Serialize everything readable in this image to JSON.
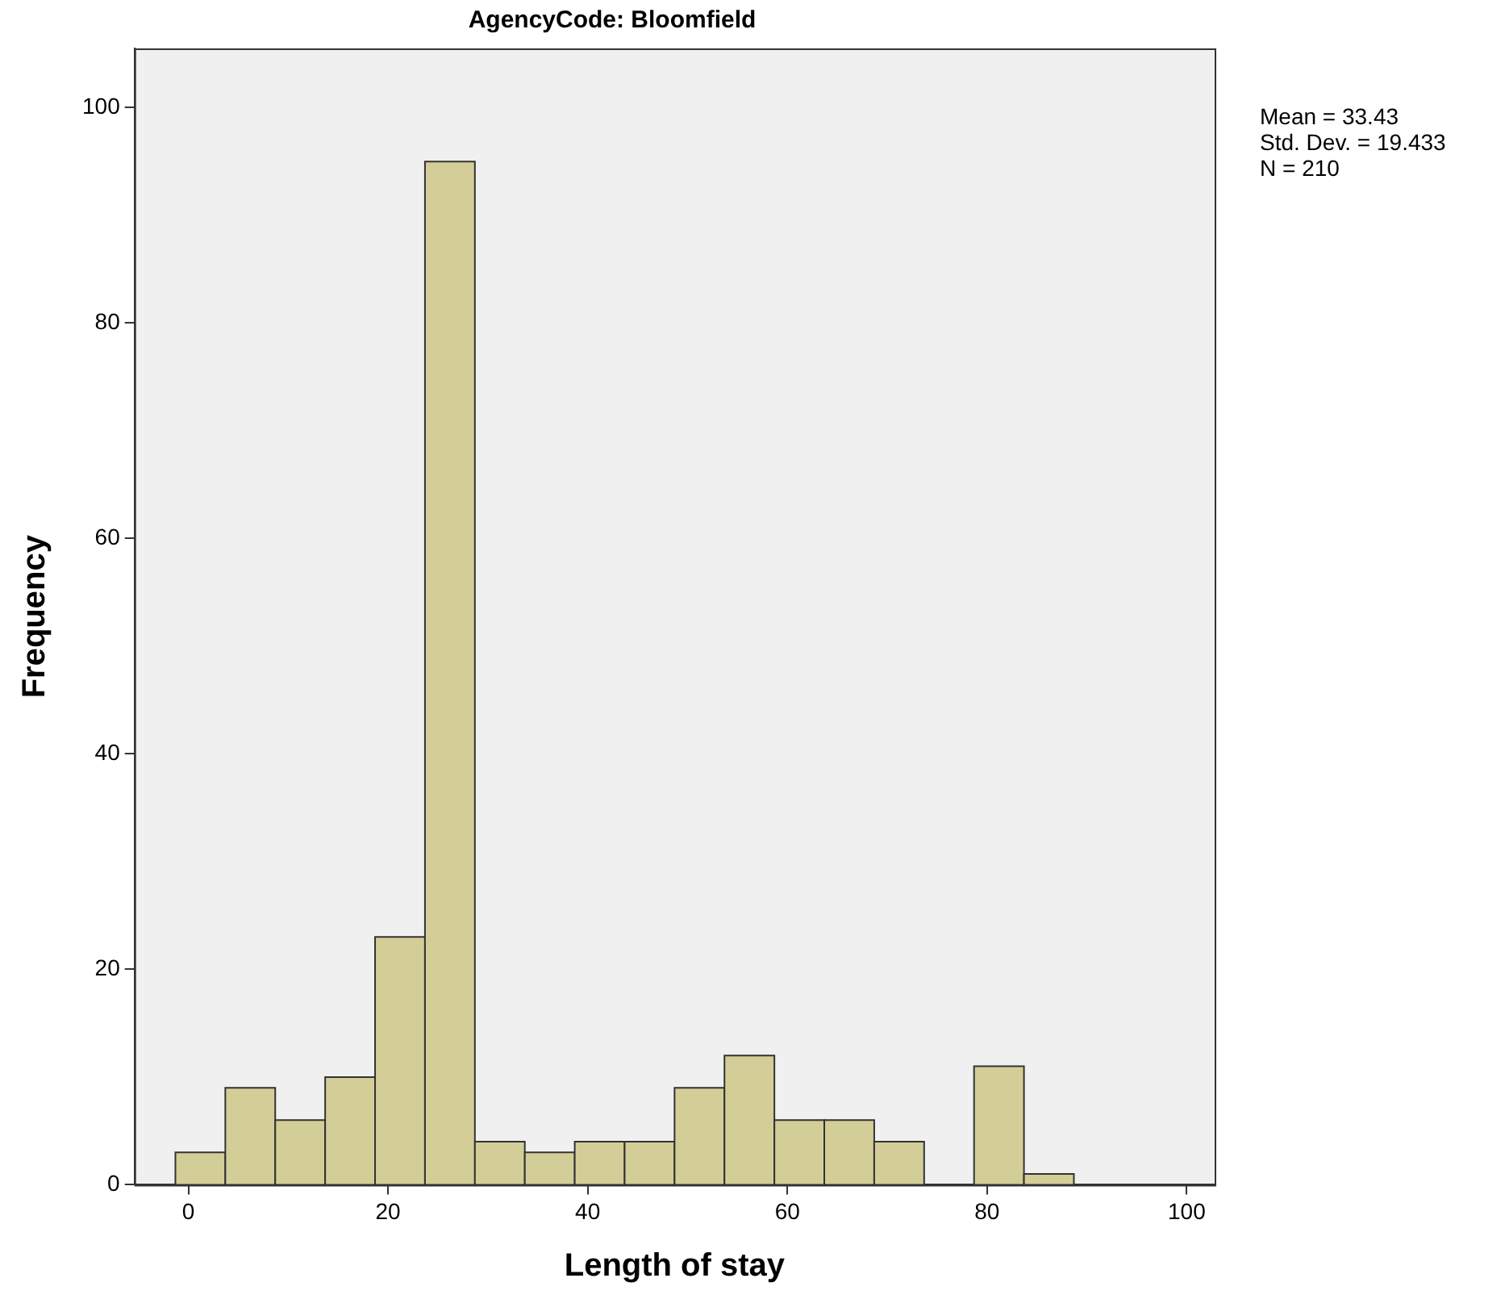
{
  "chart_data": {
    "type": "histogram",
    "title": "AgencyCode: Bloomfield",
    "xlabel": "Length of stay",
    "ylabel": "Frequency",
    "bins": [
      -1.3,
      3.7,
      8.7,
      13.7,
      18.7,
      23.7,
      28.7,
      33.7,
      38.7,
      43.7,
      48.7,
      53.7,
      58.7,
      63.7,
      68.7,
      73.7,
      78.7,
      83.7,
      88.7
    ],
    "values": [
      3,
      9,
      6,
      10,
      23,
      95,
      4,
      3,
      4,
      4,
      9,
      12,
      6,
      6,
      4,
      0,
      11,
      1
    ],
    "color": "#d3ce97",
    "xlim": [
      -5.4,
      102.8
    ],
    "xticks": [
      0,
      20,
      40,
      60,
      80,
      100
    ],
    "ylim": [
      0,
      105.5
    ],
    "yticks": [
      0,
      20,
      40,
      60,
      80,
      100
    ],
    "grid": false,
    "annotations": [
      "Mean = 33.43",
      "Std. Dev. = 19.433",
      "N = 210"
    ]
  }
}
